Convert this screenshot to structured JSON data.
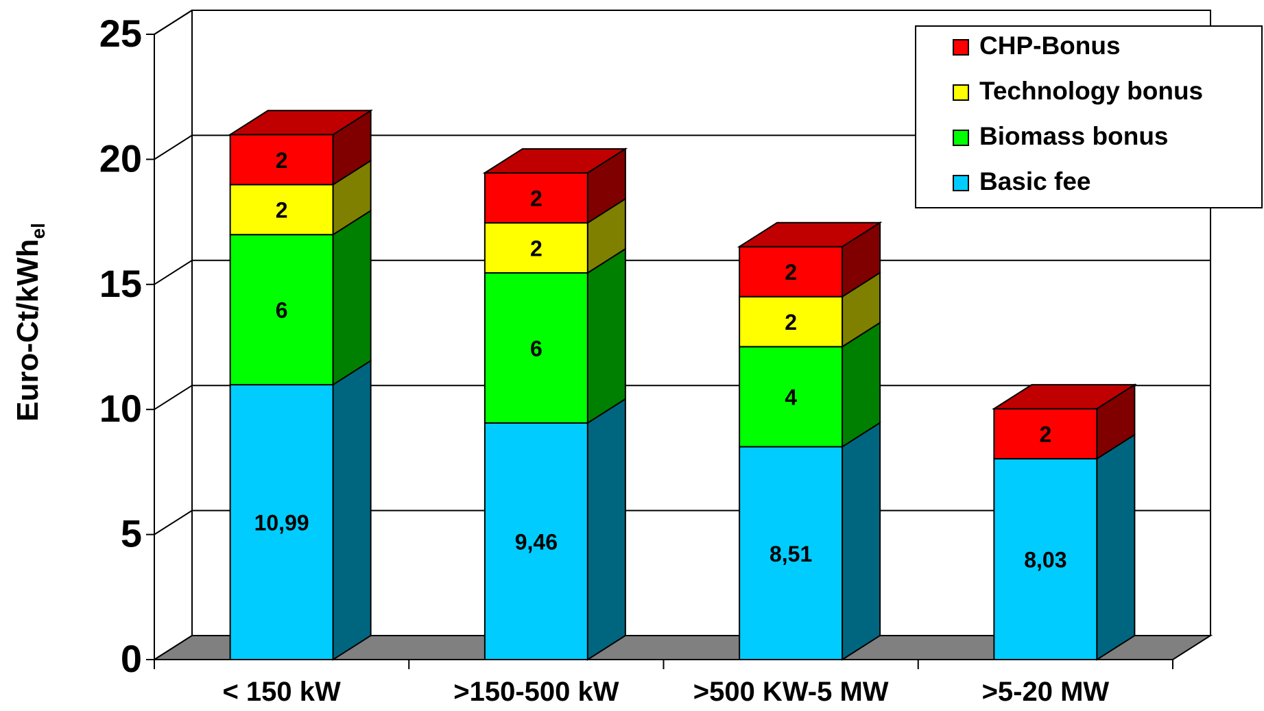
{
  "chart_data": {
    "type": "bar",
    "stacked": true,
    "three_d": true,
    "ylabel": "Euro-Ct/kWh",
    "ylabel_subscript": "el",
    "xlabel": "",
    "ylim": [
      0,
      25
    ],
    "yticks": [
      0,
      5,
      10,
      15,
      20,
      25
    ],
    "grid": true,
    "legend_position": "top-right",
    "categories": [
      "< 150 kW",
      ">150-500 kW",
      ">500 KW-5 MW",
      ">5-20 MW"
    ],
    "series": [
      {
        "name": "Basic fee",
        "color": "#00CCFF",
        "side_color": "#006680",
        "values": [
          10.99,
          9.46,
          8.51,
          8.03
        ],
        "labels": [
          "10,99",
          "9,46",
          "8,51",
          "8,03"
        ]
      },
      {
        "name": "Biomass bonus",
        "color": "#00FF00",
        "side_color": "#008000",
        "values": [
          6,
          6,
          4,
          0
        ],
        "labels": [
          "6",
          "6",
          "4",
          ""
        ]
      },
      {
        "name": "Technology bonus",
        "color": "#FFFF00",
        "side_color": "#808000",
        "values": [
          2,
          2,
          2,
          0
        ],
        "labels": [
          "2",
          "2",
          "2",
          ""
        ]
      },
      {
        "name": "CHP-Bonus",
        "color": "#FF0000",
        "side_color": "#800000",
        "top_color": "#C00000",
        "values": [
          2,
          2,
          2,
          2
        ],
        "labels": [
          "2",
          "2",
          "2",
          "2"
        ]
      }
    ],
    "legend_order": [
      "CHP-Bonus",
      "Technology bonus",
      "Biomass bonus",
      "Basic fee"
    ],
    "colors": {
      "gridline": "#000000",
      "floor": "#808080",
      "background": "#FFFFFF"
    }
  }
}
